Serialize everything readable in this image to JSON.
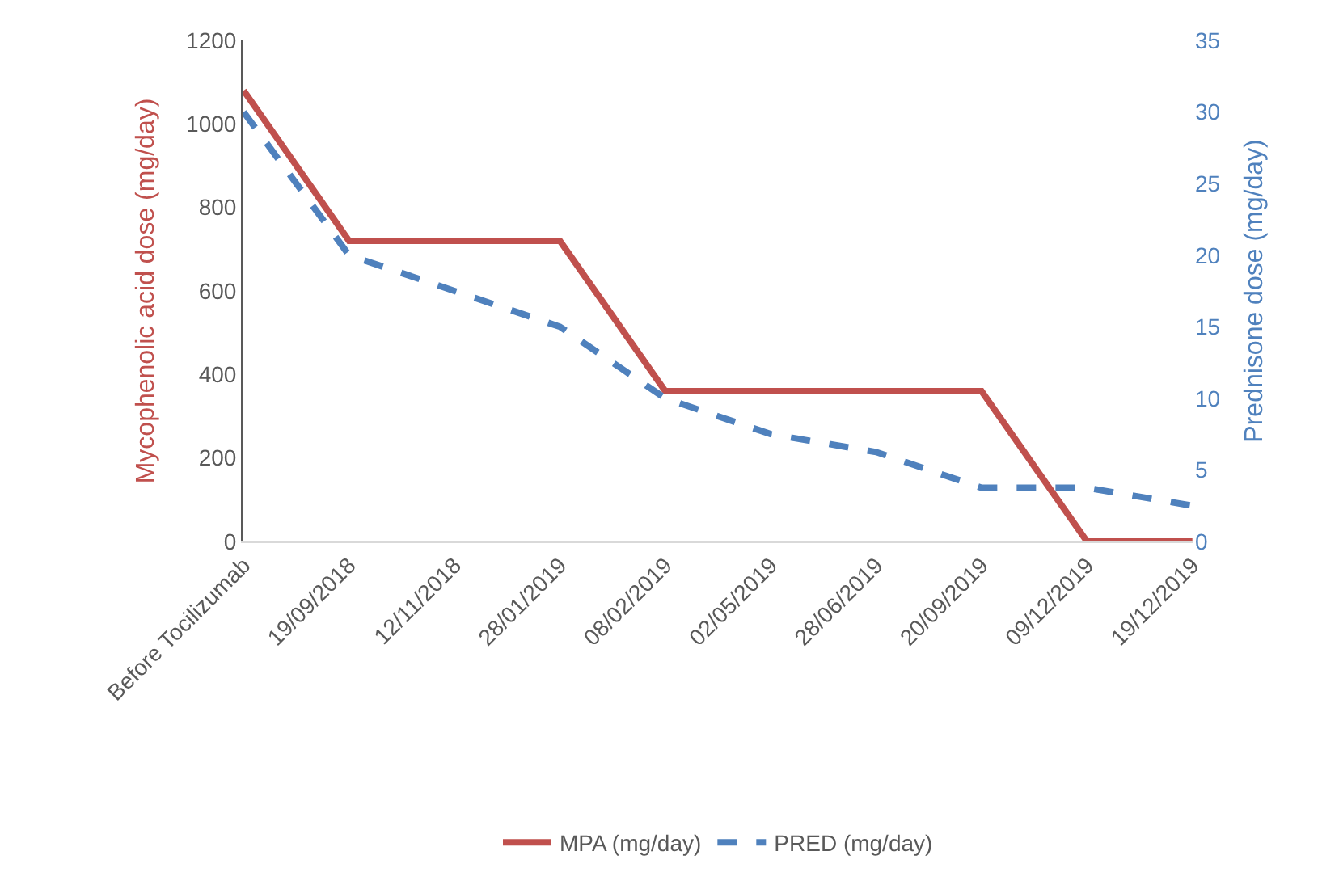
{
  "chart_data": {
    "type": "line",
    "categories": [
      "Before Tocilizumab",
      "19/09/2018",
      "12/11/2018",
      "28/01/2019",
      "08/02/2019",
      "02/05/2019",
      "28/06/2019",
      "20/09/2019",
      "09/12/2019",
      "19/12/2019"
    ],
    "series": [
      {
        "name": "MPA (mg/day)",
        "color": "#c0504d",
        "line_style": "solid",
        "values": [
          1080,
          720,
          720,
          720,
          360,
          360,
          360,
          360,
          0,
          0
        ]
      },
      {
        "name": "PRED (mg/day)",
        "color": "#4f81bd",
        "line_style": "dashed",
        "axis": "y2",
        "values": [
          30,
          20,
          17.5,
          15,
          10,
          7.5,
          6.25,
          3.75,
          3.75,
          2.5
        ]
      }
    ],
    "ylabel": "Mycophenolic acid dose (mg/day)",
    "y2label": "Prednisone dose (mg/day)",
    "ylim": [
      0,
      1200
    ],
    "yticks": [
      0,
      200,
      400,
      600,
      800,
      1000,
      1200
    ],
    "y2lim": [
      0,
      35
    ],
    "y2ticks": [
      0,
      5,
      10,
      15,
      20,
      25,
      30,
      35
    ],
    "legend": "bottom",
    "marker": "none"
  }
}
